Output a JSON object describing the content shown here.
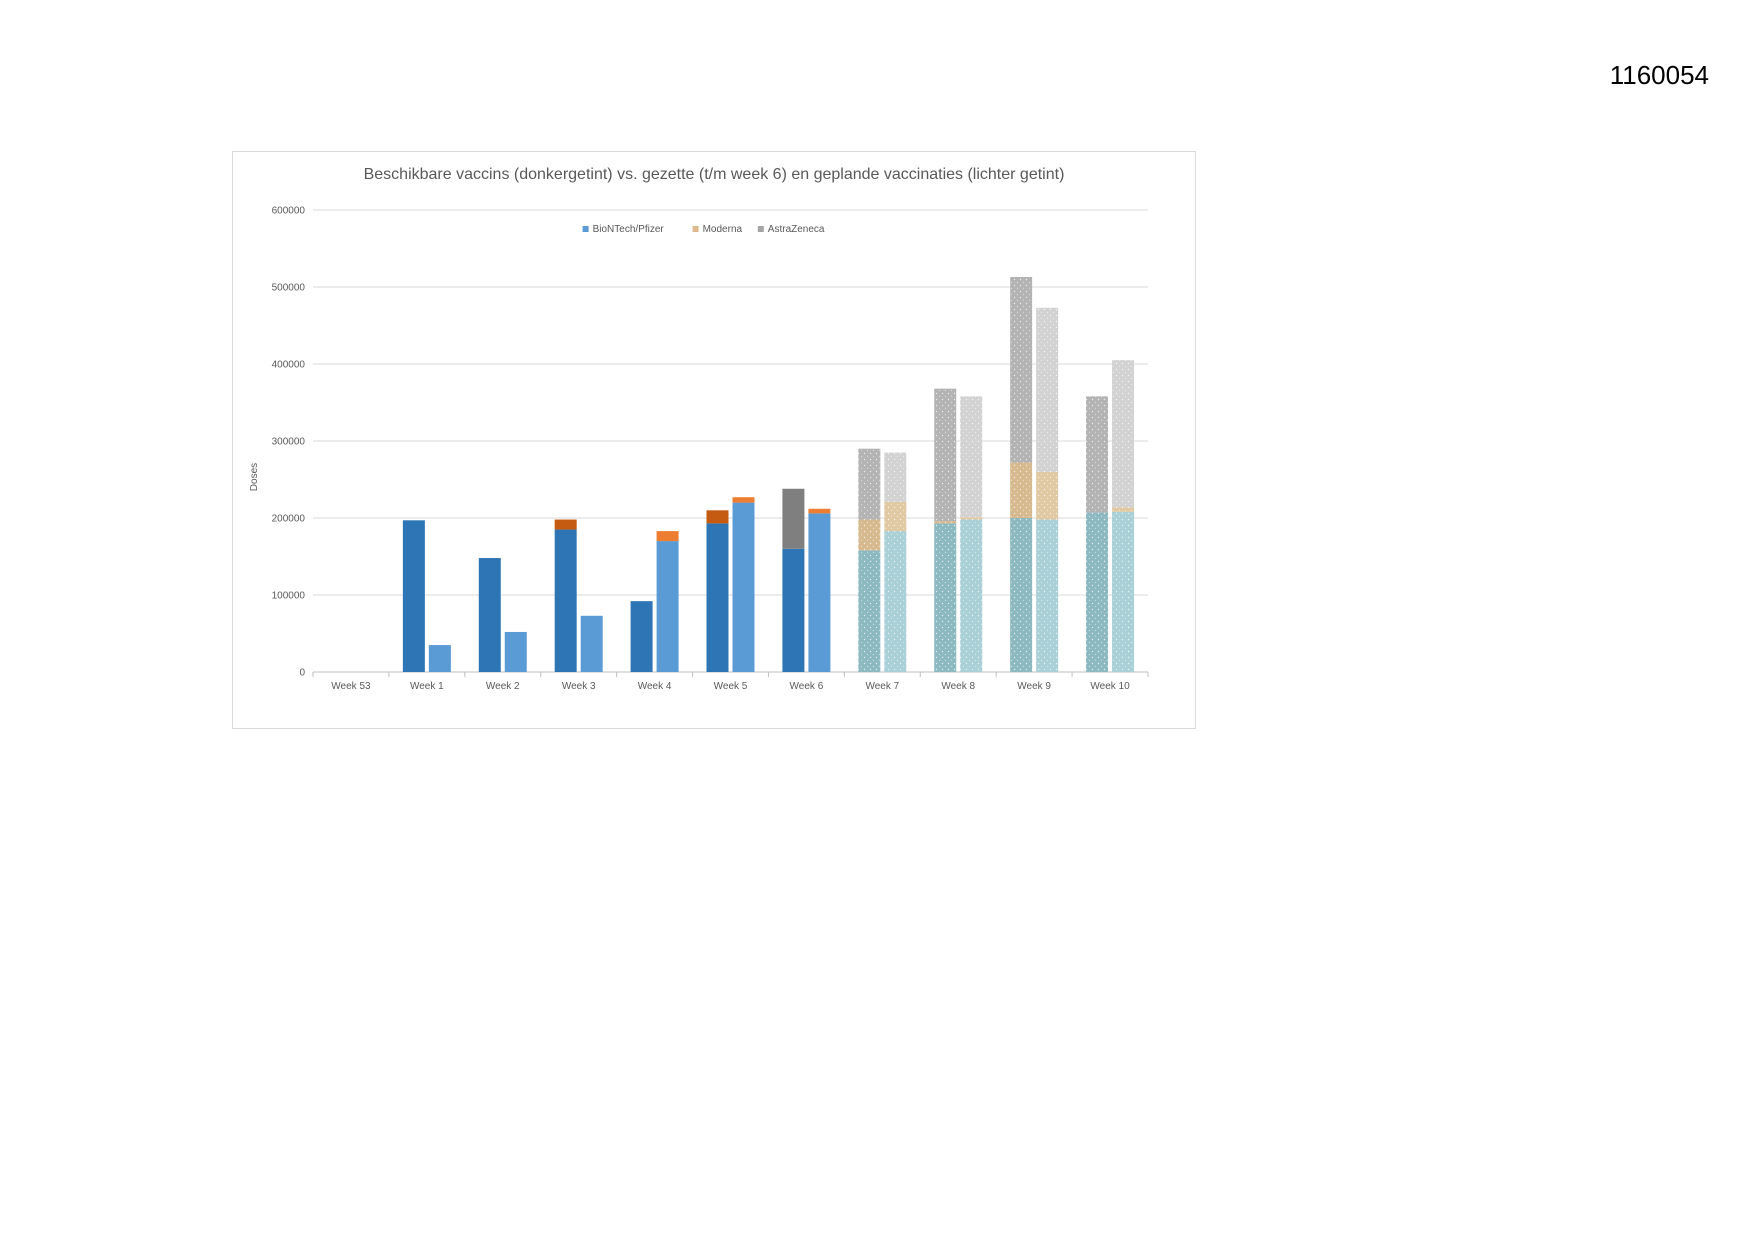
{
  "document": {
    "number": "1160054"
  },
  "chart_data": {
    "type": "bar",
    "stacked": true,
    "title": "Beschikbare vaccins (donkergetint) vs. gezette (t/m week 6) en geplande vaccinaties (lichter getint)",
    "xlabel": "",
    "ylabel": "Doses",
    "ylim": [
      0,
      600000
    ],
    "yticks": [
      0,
      100000,
      200000,
      300000,
      400000,
      500000,
      600000
    ],
    "grid": true,
    "legend_position": "top",
    "categories": [
      "Week 53",
      "Week 1",
      "Week 2",
      "Week 3",
      "Week 4",
      "Week 5",
      "Week 6",
      "Week 7",
      "Week 8",
      "Week 9",
      "Week 10"
    ],
    "legend": [
      {
        "name": "BioNTech/Pfizer",
        "color": "#5b9bd5"
      },
      {
        "name": "Moderna",
        "color": "#dbb98a"
      },
      {
        "name": "AstraZeneca",
        "color": "#a5a5a5"
      }
    ],
    "groups": [
      {
        "name": "available",
        "values": {
          "BioNTech/Pfizer": [
            0,
            197000,
            148000,
            185000,
            92000,
            193000,
            160000,
            158000,
            193000,
            200000,
            207000
          ],
          "Moderna": [
            0,
            0,
            0,
            13000,
            0,
            17000,
            0,
            40000,
            3000,
            72000,
            0
          ],
          "AstraZeneca": [
            0,
            0,
            0,
            0,
            0,
            0,
            78000,
            92000,
            172000,
            241000,
            151000
          ]
        },
        "colors": {
          "BioNTech/Pfizer": "#2e75b6",
          "Moderna": "#c55a11",
          "AstraZeneca": "#7f7f7f"
        }
      },
      {
        "name": "administered_planned",
        "values": {
          "BioNTech/Pfizer": [
            0,
            35000,
            52000,
            73000,
            170000,
            220000,
            206000,
            183000,
            198000,
            198000,
            208000
          ],
          "Moderna": [
            0,
            0,
            0,
            0,
            13000,
            7000,
            6000,
            38000,
            3000,
            62000,
            6000
          ],
          "AstraZeneca": [
            0,
            0,
            0,
            0,
            0,
            0,
            0,
            64000,
            157000,
            213000,
            191000
          ]
        },
        "colors": {
          "BioNTech/Pfizer": "#5b9bd5",
          "Moderna": "#ed7d31",
          "AstraZeneca": "#a5a5a5"
        }
      }
    ],
    "dotted_pattern_from_category": "Week 7",
    "pattern_colors": {
      "BioNTech/Pfizer": [
        "#8cb9c0",
        "#a9d0d6"
      ],
      "Moderna": [
        "#d6b98e",
        "#e0c9a2"
      ],
      "AstraZeneca": [
        "#b3b3b3",
        "#d2d2d2"
      ]
    }
  }
}
